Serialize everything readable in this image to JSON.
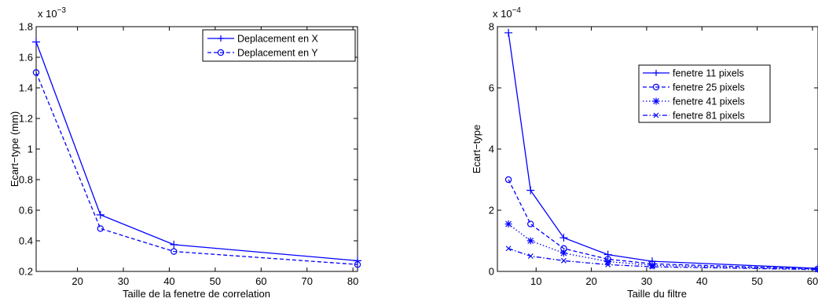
{
  "chart_data": [
    {
      "type": "line",
      "xlabel": "Taille de la fenetre de correlation",
      "ylabel": "Ecart−type (mm)",
      "exponent_base": "x 10",
      "exponent_power": "−3",
      "xlim": [
        11,
        81
      ],
      "ylim": [
        0.2,
        1.8
      ],
      "xticks": [
        20,
        30,
        40,
        50,
        60,
        70,
        80
      ],
      "xtick_labels": [
        "20",
        "30",
        "40",
        "50",
        "60",
        "70",
        "80"
      ],
      "yticks": [
        0.2,
        0.4,
        0.6,
        0.8,
        1.0,
        1.2,
        1.4,
        1.6,
        1.8
      ],
      "ytick_labels": [
        "0.2",
        "0.4",
        "0.6",
        "0.8",
        "1",
        "1.2",
        "1.4",
        "1.6",
        "1.8"
      ],
      "legend_position": "top-right",
      "color": "#0000ff",
      "series": [
        {
          "name": "Deplacement en X",
          "marker": "plus",
          "dash": "solid",
          "x": [
            11,
            25,
            41,
            81
          ],
          "y": [
            1.7,
            0.57,
            0.375,
            0.27
          ]
        },
        {
          "name": "Deplacement en Y",
          "marker": "circle",
          "dash": "dashed",
          "x": [
            11,
            25,
            41,
            81
          ],
          "y": [
            1.5,
            0.48,
            0.33,
            0.245
          ]
        }
      ]
    },
    {
      "type": "line",
      "xlabel": "Taille du filtre",
      "ylabel": "Ecart−type",
      "exponent_base": "x 10",
      "exponent_power": "−4",
      "xlim": [
        3,
        61
      ],
      "ylim": [
        0,
        8
      ],
      "xticks": [
        10,
        20,
        30,
        40,
        50,
        60
      ],
      "xtick_labels": [
        "10",
        "20",
        "30",
        "40",
        "50",
        "60"
      ],
      "yticks": [
        0,
        2,
        4,
        6,
        8
      ],
      "ytick_labels": [
        "0",
        "2",
        "4",
        "6",
        "8"
      ],
      "legend_position": "upper-center",
      "color": "#0000ff",
      "series": [
        {
          "name": "fenetre 11 pixels",
          "marker": "plus",
          "dash": "solid",
          "x": [
            5,
            9,
            15,
            23,
            31,
            61
          ],
          "y": [
            7.8,
            2.65,
            1.1,
            0.55,
            0.33,
            0.1
          ]
        },
        {
          "name": "fenetre 25 pixels",
          "marker": "circle",
          "dash": "dashed",
          "x": [
            5,
            9,
            15,
            23,
            31,
            61
          ],
          "y": [
            3.0,
            1.55,
            0.75,
            0.4,
            0.25,
            0.08
          ]
        },
        {
          "name": "fenetre 41 pixels",
          "marker": "star",
          "dash": "dotted",
          "x": [
            5,
            9,
            15,
            23,
            31,
            61
          ],
          "y": [
            1.55,
            1.0,
            0.6,
            0.32,
            0.2,
            0.07
          ]
        },
        {
          "name": "fenetre 81 pixels",
          "marker": "x",
          "dash": "dashdot",
          "x": [
            5,
            9,
            15,
            23,
            31,
            61
          ],
          "y": [
            0.75,
            0.5,
            0.35,
            0.22,
            0.15,
            0.06
          ]
        }
      ]
    }
  ]
}
